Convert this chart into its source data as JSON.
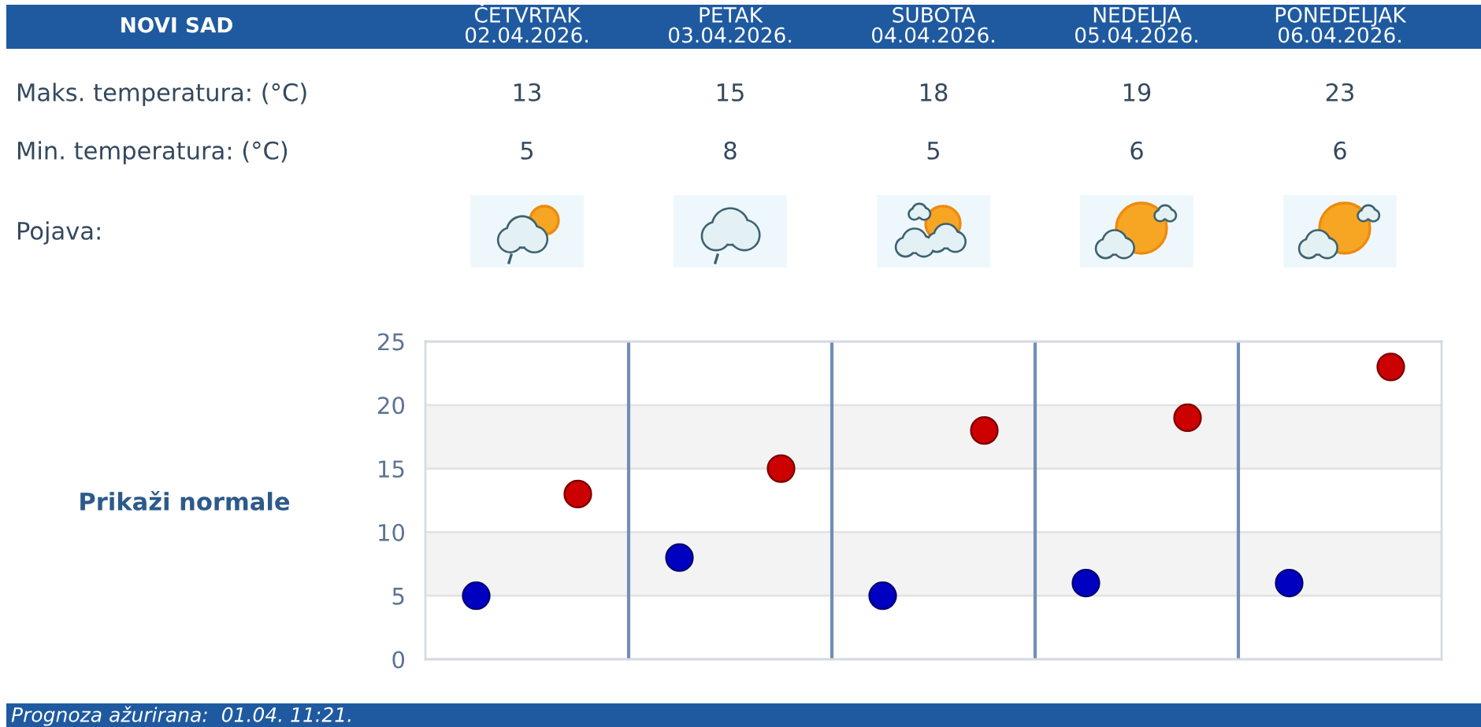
{
  "chart_data": {
    "type": "scatter",
    "title": "NOVI SAD",
    "categories": [
      null,
      null,
      null,
      null,
      null
    ],
    "tick_labels": "y",
    "series": [
      {
        "color": "#cc0000",
        "values": [
          13,
          15,
          18,
          19,
          23
        ]
      },
      {
        "color": "#0000c0",
        "values": [
          5,
          8,
          5,
          6,
          6
        ]
      }
    ],
    "ylim": [
      0,
      25
    ],
    "yticks": [
      0,
      5,
      10,
      15,
      20,
      25
    ],
    "grid": true,
    "marker": "circle",
    "data_labels": true,
    "bands": [
      {
        "axis": "y",
        "from": 5,
        "to": 10,
        "color": "#f3f3f3"
      },
      {
        "axis": "y",
        "from": 15,
        "to": 20,
        "color": "#f3f3f3"
      }
    ],
    "annotations": [
      "ČETVRTAK\n02.04.2026.",
      "PETAK\n03.04.2026.",
      "SUBOTA\n04.04.2026.",
      "NEDELJA\n05.04.2026.",
      "PONEDELJAK\n06.04.2026.",
      "Maks. temperatura: (°C)",
      "Min. temperatura: (°C)",
      "Pojava:",
      "Prikaži normale",
      "Prognoza ažurirana:  01.04. 11:21."
    ]
  }
}
